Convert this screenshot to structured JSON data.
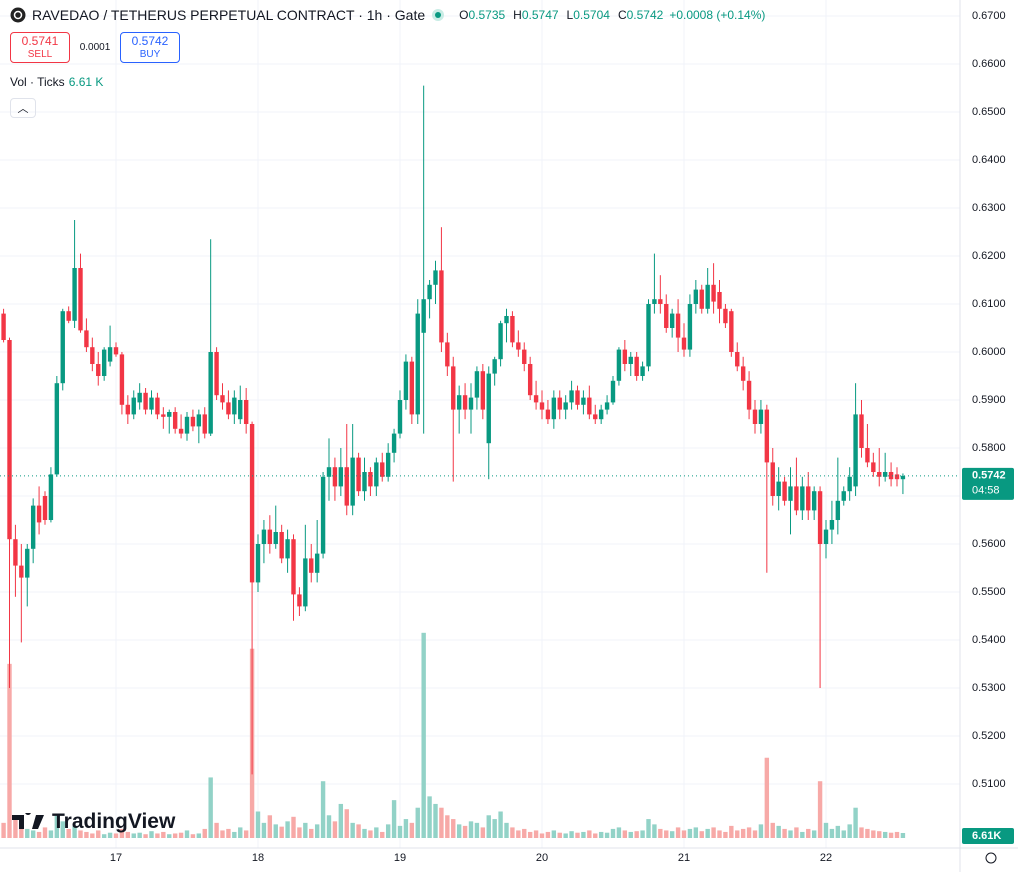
{
  "header": {
    "title": "RAVEDAO / TETHERUS PERPETUAL CONTRACT · 1h · Gate",
    "ohlc": [
      {
        "key": "O",
        "value": "0.5735"
      },
      {
        "key": "H",
        "value": "0.5747"
      },
      {
        "key": "L",
        "value": "0.5704"
      },
      {
        "key": "C",
        "value": "0.5742"
      }
    ],
    "change": "+0.0008 (+0.14%)"
  },
  "trade": {
    "sell_price": "0.5741",
    "sell_label": "SELL",
    "spread": "0.0001",
    "buy_price": "0.5742",
    "buy_label": "BUY"
  },
  "volume_legend": {
    "title": "Vol · Ticks",
    "value": "6.61 K"
  },
  "watermark": "TradingView",
  "chart_data": {
    "type": "candlestick",
    "x": [
      null,
      null,
      null,
      null,
      null,
      null,
      null,
      null,
      null,
      null,
      null,
      null,
      null,
      null,
      null,
      null,
      null,
      null,
      null,
      null,
      "17",
      null,
      null,
      null,
      null,
      null,
      null,
      null,
      null,
      null,
      null,
      null,
      null,
      null,
      null,
      null,
      null,
      null,
      null,
      null,
      null,
      null,
      null,
      null,
      "18",
      null,
      null,
      null,
      null,
      null,
      null,
      null,
      null,
      null,
      null,
      null,
      null,
      null,
      null,
      null,
      null,
      null,
      null,
      null,
      null,
      null,
      null,
      null,
      "19",
      null,
      null,
      null,
      null,
      null,
      null,
      null,
      null,
      null,
      null,
      null,
      null,
      null,
      null,
      null,
      null,
      null,
      null,
      null,
      null,
      null,
      null,
      null,
      "20",
      null,
      null,
      null,
      null,
      null,
      null,
      null,
      null,
      null,
      null,
      null,
      null,
      null,
      null,
      null,
      null,
      null,
      null,
      null,
      null,
      null,
      null,
      null,
      "21",
      null,
      null,
      null,
      null,
      null,
      null,
      null,
      null,
      null,
      null,
      null,
      null,
      null,
      null,
      null,
      null,
      null,
      null,
      null,
      null,
      null,
      null,
      null,
      "22",
      null,
      null,
      null,
      null,
      null,
      null,
      null,
      null,
      null,
      null,
      null,
      null,
      null
    ],
    "open": [
      0.617,
      0.608,
      0.6025,
      0.561,
      0.5555,
      0.553,
      0.559,
      0.568,
      0.57,
      0.565,
      0.5745,
      0.5935,
      0.6085,
      0.6065,
      0.6175,
      0.6045,
      0.601,
      0.5975,
      0.595,
      0.598,
      0.601,
      0.5995,
      0.589,
      0.587,
      0.5895,
      0.5915,
      0.588,
      0.5905,
      0.587,
      0.5865,
      0.5875,
      0.584,
      0.583,
      0.5865,
      0.5845,
      0.587,
      0.583,
      0.6,
      0.591,
      0.5895,
      0.587,
      0.586,
      0.59,
      0.585,
      0.552,
      0.56,
      0.563,
      0.56,
      0.5625,
      0.557,
      0.561,
      0.5495,
      0.547,
      0.557,
      0.554,
      0.558,
      0.574,
      0.576,
      0.572,
      0.576,
      0.568,
      0.578,
      0.571,
      0.575,
      0.572,
      0.577,
      0.574,
      0.579,
      0.583,
      0.59,
      0.598,
      0.587,
      0.604,
      0.611,
      0.614,
      0.617,
      0.602,
      0.597,
      0.588,
      0.591,
      0.588,
      0.5905,
      0.596,
      0.581,
      0.5955,
      0.5985,
      0.606,
      0.6075,
      0.602,
      0.6005,
      0.5975,
      0.591,
      0.5895,
      0.588,
      0.586,
      0.5905,
      0.588,
      0.5895,
      0.592,
      0.589,
      0.5905,
      0.587,
      0.586,
      0.588,
      0.5895,
      0.594,
      0.6005,
      0.5975,
      0.599,
      0.595,
      0.597,
      0.61,
      0.611,
      0.61,
      0.605,
      0.608,
      0.603,
      0.6005,
      0.61,
      0.613,
      0.609,
      0.614,
      0.6125,
      0.609,
      0.6085,
      0.6,
      0.597,
      0.594,
      0.588,
      0.585,
      0.588,
      0.577,
      0.57,
      0.573,
      0.569,
      0.572,
      0.567,
      0.572,
      0.567,
      0.571,
      0.56,
      0.563,
      0.565,
      0.569,
      0.571,
      0.572,
      0.587,
      0.58,
      0.577,
      0.575,
      0.574,
      0.575,
      0.5745,
      0.5735
    ],
    "high": [
      0.6175,
      0.609,
      0.603,
      0.564,
      0.56,
      0.56,
      0.5695,
      0.572,
      0.571,
      0.576,
      0.595,
      0.609,
      0.6095,
      0.6275,
      0.6205,
      0.607,
      0.603,
      0.6,
      0.601,
      0.6055,
      0.602,
      0.6,
      0.591,
      0.592,
      0.5935,
      0.5925,
      0.592,
      0.5915,
      0.5885,
      0.588,
      0.5885,
      0.587,
      0.5875,
      0.588,
      0.588,
      0.5885,
      0.6235,
      0.601,
      0.5935,
      0.592,
      0.592,
      0.593,
      0.5925,
      0.5855,
      0.562,
      0.565,
      0.566,
      0.568,
      0.564,
      0.563,
      0.562,
      0.551,
      0.564,
      0.56,
      0.565,
      0.575,
      0.582,
      0.578,
      0.58,
      0.585,
      0.585,
      0.579,
      0.578,
      0.576,
      0.578,
      0.579,
      0.581,
      0.584,
      0.592,
      0.5995,
      0.599,
      0.611,
      0.6555,
      0.615,
      0.619,
      0.626,
      0.604,
      0.599,
      0.593,
      0.5935,
      0.5935,
      0.597,
      0.5975,
      0.597,
      0.599,
      0.6065,
      0.609,
      0.6085,
      0.6045,
      0.602,
      0.599,
      0.594,
      0.592,
      0.59,
      0.592,
      0.592,
      0.591,
      0.594,
      0.593,
      0.592,
      0.593,
      0.589,
      0.589,
      0.591,
      0.595,
      0.601,
      0.6025,
      0.6,
      0.6,
      0.598,
      0.611,
      0.6205,
      0.616,
      0.612,
      0.609,
      0.611,
      0.606,
      0.612,
      0.615,
      0.614,
      0.6175,
      0.6185,
      0.615,
      0.61,
      0.609,
      0.602,
      0.599,
      0.596,
      0.59,
      0.59,
      0.589,
      0.58,
      0.576,
      0.574,
      0.576,
      0.578,
      0.574,
      0.575,
      0.572,
      0.572,
      0.565,
      0.569,
      0.578,
      0.572,
      0.576,
      0.5935,
      0.59,
      0.585,
      0.579,
      0.58,
      0.579,
      0.577,
      0.576,
      0.5747
    ],
    "low": [
      0.608,
      0.602,
      0.53,
      0.549,
      0.5395,
      0.547,
      0.556,
      0.562,
      0.564,
      0.5645,
      0.574,
      0.592,
      0.606,
      0.605,
      0.604,
      0.6,
      0.596,
      0.593,
      0.594,
      0.597,
      0.599,
      0.587,
      0.585,
      0.586,
      0.588,
      0.587,
      0.587,
      0.586,
      0.584,
      0.583,
      0.583,
      0.582,
      0.5815,
      0.5835,
      0.581,
      0.582,
      0.5825,
      0.59,
      0.588,
      0.586,
      0.585,
      0.585,
      0.583,
      0.512,
      0.55,
      0.556,
      0.558,
      0.559,
      0.556,
      0.554,
      0.544,
      0.545,
      0.546,
      0.552,
      0.552,
      0.557,
      0.569,
      0.569,
      0.57,
      0.566,
      0.566,
      0.57,
      0.569,
      0.57,
      0.57,
      0.573,
      0.573,
      0.577,
      0.582,
      0.588,
      0.585,
      0.585,
      0.583,
      0.607,
      0.61,
      0.6,
      0.595,
      0.573,
      0.583,
      0.586,
      0.583,
      0.588,
      0.586,
      0.5735,
      0.593,
      0.597,
      0.602,
      0.601,
      0.599,
      0.596,
      0.59,
      0.588,
      0.586,
      0.585,
      0.584,
      0.586,
      0.586,
      0.588,
      0.588,
      0.587,
      0.586,
      0.585,
      0.585,
      0.587,
      0.589,
      0.593,
      0.596,
      0.595,
      0.594,
      0.594,
      0.596,
      0.608,
      0.608,
      0.604,
      0.603,
      0.6,
      0.599,
      0.599,
      0.608,
      0.608,
      0.608,
      0.608,
      0.606,
      0.605,
      0.599,
      0.596,
      0.592,
      0.586,
      0.583,
      0.583,
      0.554,
      0.568,
      0.567,
      0.568,
      0.562,
      0.566,
      0.565,
      0.565,
      0.565,
      0.53,
      0.557,
      0.56,
      0.562,
      0.568,
      0.569,
      0.57,
      0.578,
      0.576,
      0.574,
      0.572,
      0.573,
      0.572,
      0.572,
      0.5704
    ],
    "close": [
      0.6085,
      0.6025,
      0.561,
      0.5555,
      0.553,
      0.559,
      0.568,
      0.5645,
      0.565,
      0.5745,
      0.5935,
      0.6085,
      0.6065,
      0.6175,
      0.6045,
      0.601,
      0.5975,
      0.595,
      0.6005,
      0.601,
      0.5995,
      0.589,
      0.587,
      0.5905,
      0.5915,
      0.588,
      0.5905,
      0.587,
      0.5865,
      0.5875,
      0.584,
      0.583,
      0.5865,
      0.5845,
      0.587,
      0.583,
      0.6,
      0.591,
      0.5895,
      0.587,
      0.5905,
      0.59,
      0.585,
      0.552,
      0.56,
      0.563,
      0.56,
      0.5625,
      0.557,
      0.561,
      0.5495,
      0.547,
      0.557,
      0.554,
      0.558,
      0.574,
      0.576,
      0.572,
      0.576,
      0.568,
      0.578,
      0.571,
      0.575,
      0.572,
      0.577,
      0.574,
      0.579,
      0.583,
      0.59,
      0.598,
      0.587,
      0.608,
      0.611,
      0.614,
      0.617,
      0.602,
      0.597,
      0.588,
      0.591,
      0.588,
      0.5905,
      0.596,
      0.588,
      0.5955,
      0.5985,
      0.606,
      0.6075,
      0.602,
      0.6005,
      0.5975,
      0.591,
      0.5895,
      0.588,
      0.586,
      0.5905,
      0.588,
      0.5895,
      0.592,
      0.589,
      0.5905,
      0.587,
      0.586,
      0.588,
      0.5895,
      0.594,
      0.6005,
      0.5975,
      0.599,
      0.595,
      0.597,
      0.61,
      0.611,
      0.61,
      0.605,
      0.608,
      0.603,
      0.6005,
      0.61,
      0.613,
      0.609,
      0.614,
      0.6105,
      0.609,
      0.606,
      0.6,
      0.597,
      0.594,
      0.588,
      0.585,
      0.588,
      0.577,
      0.57,
      0.573,
      0.569,
      0.572,
      0.567,
      0.572,
      0.567,
      0.571,
      0.56,
      0.563,
      0.565,
      0.569,
      0.571,
      0.574,
      0.587,
      0.58,
      0.577,
      0.575,
      0.574,
      0.575,
      0.5735,
      0.5735,
      0.5742
    ],
    "volume": [
      12000,
      20000,
      230000,
      30000,
      15000,
      12000,
      10000,
      8000,
      14000,
      10000,
      30000,
      22000,
      12000,
      16000,
      10000,
      8000,
      6000,
      10000,
      5000,
      7000,
      6000,
      12000,
      8000,
      6000,
      7000,
      5000,
      9000,
      6000,
      8000,
      5000,
      6000,
      7000,
      10000,
      5000,
      6000,
      12000,
      80000,
      20000,
      10000,
      12000,
      8000,
      14000,
      10000,
      250000,
      35000,
      20000,
      30000,
      18000,
      15000,
      22000,
      28000,
      14000,
      20000,
      12000,
      18000,
      75000,
      30000,
      22000,
      45000,
      38000,
      20000,
      18000,
      12000,
      10000,
      14000,
      8000,
      18000,
      50000,
      16000,
      25000,
      20000,
      40000,
      271000,
      55000,
      45000,
      40000,
      30000,
      25000,
      18000,
      16000,
      22000,
      20000,
      14000,
      30000,
      25000,
      35000,
      20000,
      14000,
      10000,
      12000,
      8000,
      10000,
      6000,
      8000,
      10000,
      7000,
      6000,
      9000,
      7000,
      8000,
      10000,
      6000,
      8000,
      7000,
      12000,
      14000,
      10000,
      8000,
      9000,
      10000,
      25000,
      18000,
      12000,
      10000,
      9000,
      14000,
      10000,
      12000,
      14000,
      9000,
      12000,
      14000,
      10000,
      8000,
      16000,
      10000,
      12000,
      14000,
      10000,
      18000,
      106000,
      20000,
      16000,
      12000,
      10000,
      14000,
      8000,
      12000,
      10000,
      75000,
      20000,
      12000,
      16000,
      10000,
      18000,
      40000,
      14000,
      12000,
      10000,
      9000,
      8000,
      7000,
      8000,
      6610
    ],
    "volume_label": "6.61K",
    "volume_ylim": [
      0,
      280000
    ],
    "ylim": [
      0.49667,
      0.67333
    ],
    "yticks": [
      {
        "value": 0.67,
        "label": "0.6700"
      },
      {
        "value": 0.66,
        "label": "0.6600"
      },
      {
        "value": 0.65,
        "label": "0.6500"
      },
      {
        "value": 0.64,
        "label": "0.6400"
      },
      {
        "value": 0.63,
        "label": "0.6300"
      },
      {
        "value": 0.62,
        "label": "0.6200"
      },
      {
        "value": 0.61,
        "label": "0.6100"
      },
      {
        "value": 0.6,
        "label": "0.6000"
      },
      {
        "value": 0.59,
        "label": "0.5900"
      },
      {
        "value": 0.58,
        "label": "0.5800"
      },
      {
        "value": 0.57,
        "label": "0.5700"
      },
      {
        "value": 0.56,
        "label": "0.5600"
      },
      {
        "value": 0.55,
        "label": "0.5500"
      },
      {
        "value": 0.54,
        "label": "0.5400"
      },
      {
        "value": 0.53,
        "label": "0.5300"
      },
      {
        "value": 0.52,
        "label": "0.5200"
      },
      {
        "value": 0.51,
        "label": "0.5100"
      }
    ],
    "last_price": {
      "value": 0.5742,
      "label": "0.5742"
    },
    "countdown": "04:58",
    "up_color": "#089981",
    "down_color": "#f23645",
    "up_volume_color": "#92d2c7",
    "down_volume_color": "#f7a9a7",
    "grid": true
  }
}
